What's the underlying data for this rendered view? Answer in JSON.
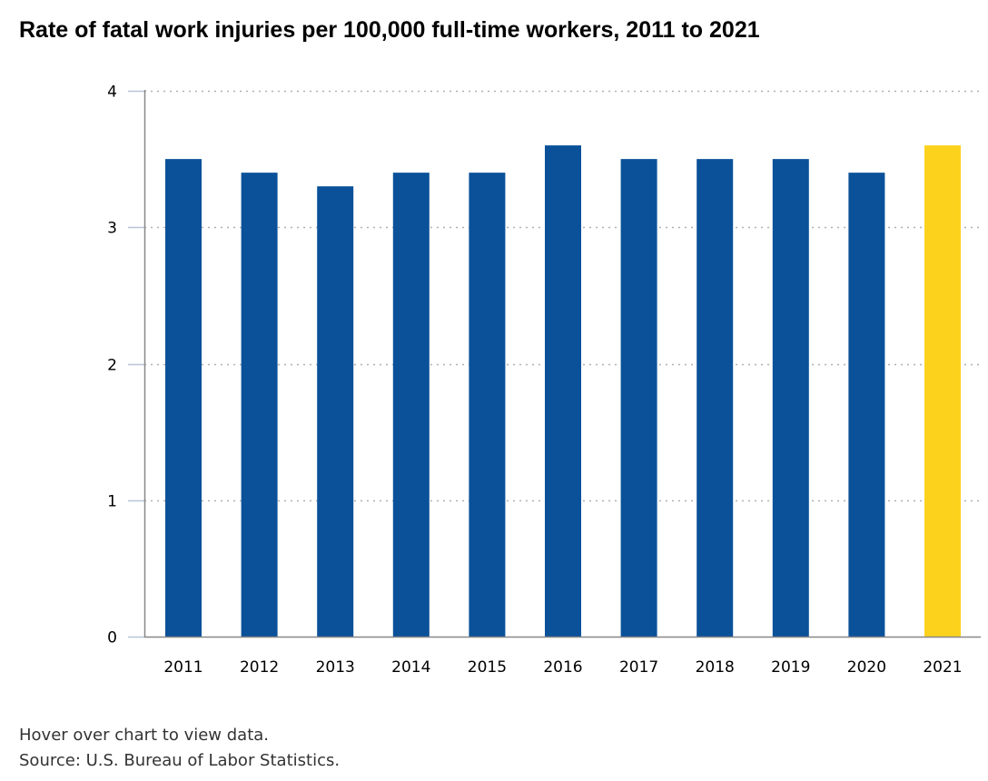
{
  "chart_data": {
    "type": "bar",
    "title": "Rate of fatal work injuries per 100,000 full-time workers, 2011 to 2021",
    "xlabel": "",
    "ylabel": "",
    "categories": [
      "2011",
      "2012",
      "2013",
      "2014",
      "2015",
      "2016",
      "2017",
      "2018",
      "2019",
      "2020",
      "2021"
    ],
    "values": [
      3.5,
      3.4,
      3.3,
      3.4,
      3.4,
      3.6,
      3.5,
      3.5,
      3.5,
      3.4,
      3.6
    ],
    "highlight_category": "2021",
    "ylim": [
      0,
      4
    ],
    "yticks": [
      "0",
      "1",
      "2",
      "3",
      "4"
    ],
    "grid": "horizontal dotted",
    "legend": "none"
  },
  "colors": {
    "bar": "#0a5199",
    "highlight": "#fcd21c",
    "gridline": "#b0b0b0",
    "axis": "#888888"
  },
  "footnotes": {
    "hover_note": "Hover over chart to view data.",
    "source": "Source: U.S. Bureau of Labor Statistics."
  }
}
